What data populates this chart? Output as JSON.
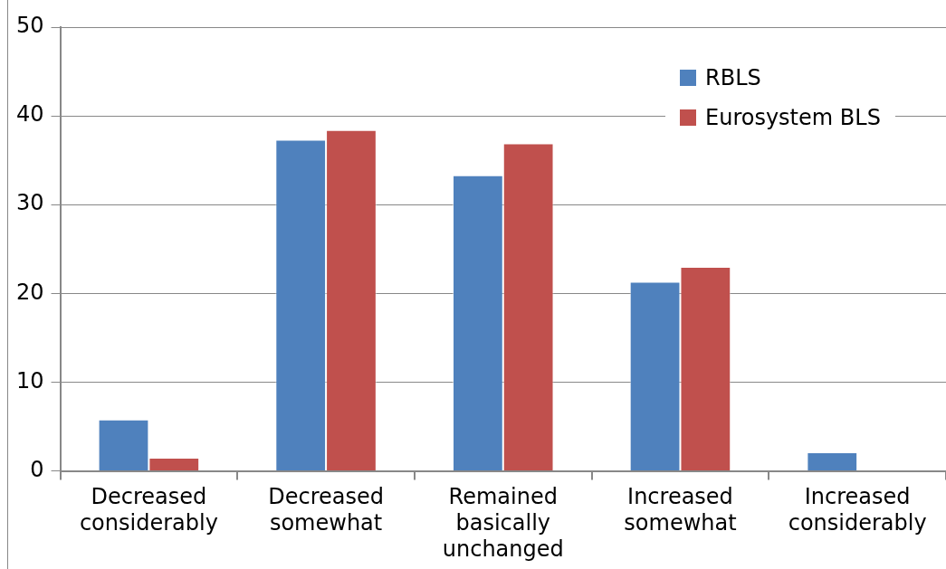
{
  "chart_data": {
    "type": "bar",
    "categories": [
      "Decreased considerably",
      "Decreased somewhat",
      "Remained basically unchanged",
      "Increased somewhat",
      "Increased considerably"
    ],
    "series": [
      {
        "name": "RBLS",
        "color": "#4f81bd",
        "values": [
          5.8,
          37.3,
          33.3,
          21.3,
          2.1
        ]
      },
      {
        "name": "Eurosystem BLS",
        "color": "#c0504d",
        "values": [
          1.5,
          38.4,
          36.9,
          23.0,
          0
        ]
      }
    ],
    "ylim": [
      0,
      50
    ],
    "yticks": [
      0,
      10,
      20,
      30,
      40,
      50
    ],
    "grid": "y",
    "legend": "top right"
  }
}
